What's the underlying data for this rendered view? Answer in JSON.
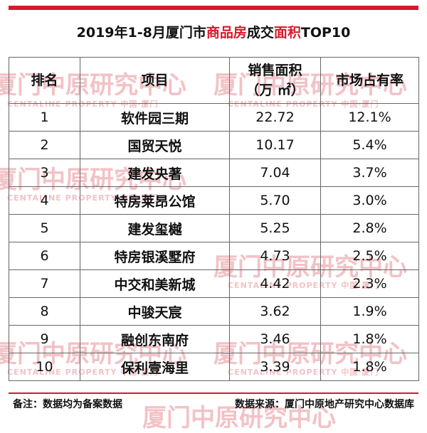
{
  "title": {
    "prefix": "2019年1-8月厦门市",
    "highlight1": "商品房",
    "middle": "成交",
    "highlight2": "面积",
    "suffix": "TOP10"
  },
  "colors": {
    "accent": "#d7192a",
    "watermark": "#f2c2c6"
  },
  "watermark": {
    "cn": "厦门中原研究中心",
    "en": "CENTALINE PROPERTY 中国·厦门"
  },
  "table": {
    "headers": [
      "排名",
      "项目",
      "销售面积",
      "（万 ㎡）",
      "市场占有率"
    ],
    "rows": [
      [
        "1",
        "软件园三期",
        "22.72",
        "12.1%"
      ],
      [
        "2",
        "国贸天悦",
        "10.17",
        "5.4%"
      ],
      [
        "3",
        "建发央著",
        "7.04",
        "3.7%"
      ],
      [
        "4",
        "特房莱昂公馆",
        "5.70",
        "3.0%"
      ],
      [
        "5",
        "建发玺樾",
        "5.25",
        "2.8%"
      ],
      [
        "6",
        "特房银溪墅府",
        "4.73",
        "2.5%"
      ],
      [
        "7",
        "中交和美新城",
        "4.42",
        "2.3%"
      ],
      [
        "8",
        "中骏天宸",
        "3.62",
        "1.9%"
      ],
      [
        "9",
        "融创东南府",
        "3.46",
        "1.8%"
      ],
      [
        "10",
        "保利壹海里",
        "3.39",
        "1.8%"
      ]
    ]
  },
  "footer": {
    "note": "备注：数据均为备案数据",
    "source": "数据来源：厦门中原地产研究中心数据库"
  }
}
